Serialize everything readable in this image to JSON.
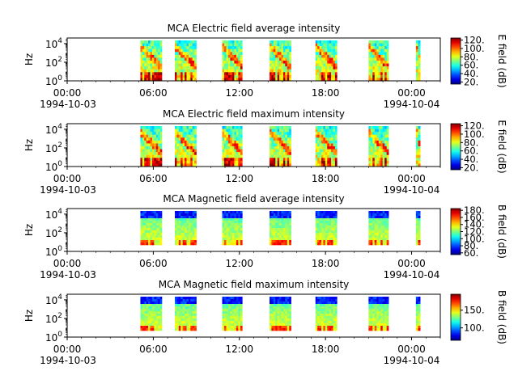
{
  "chart_data": [
    {
      "type": "heatmap",
      "title": "MCA  Electric field average intensity",
      "ylabel": "Hz",
      "y_scale": "log",
      "y_tick_labels": [
        {
          "base": "10",
          "exp": "0"
        },
        {
          "base": "10",
          "exp": "2"
        },
        {
          "base": "10",
          "exp": "4"
        }
      ],
      "x_tick_labels": [
        "00:00",
        "06:00",
        "12:00",
        "18:00",
        "00:00"
      ],
      "x_date_labels": [
        "1994-10-03",
        "1994-10-04"
      ],
      "colorbar": {
        "label": "E field (dB)",
        "min": 15,
        "max": 125,
        "ticks": [
          "20.",
          "40.",
          "60.",
          "80.",
          "100.",
          "120."
        ],
        "tick_values": [
          20,
          40,
          60,
          80,
          100,
          120
        ]
      },
      "data_segments_utc_hours": [
        [
          5.1,
          6.6
        ],
        [
          7.5,
          9.0
        ],
        [
          10.8,
          12.2
        ],
        [
          14.1,
          15.6
        ],
        [
          17.3,
          18.8
        ],
        [
          21.0,
          22.4
        ],
        [
          24.3,
          24.6
        ]
      ]
    },
    {
      "type": "heatmap",
      "title": "MCA  Electric field maximum intensity",
      "ylabel": "Hz",
      "y_scale": "log",
      "y_tick_labels": [
        {
          "base": "10",
          "exp": "0"
        },
        {
          "base": "10",
          "exp": "2"
        },
        {
          "base": "10",
          "exp": "4"
        }
      ],
      "x_tick_labels": [
        "00:00",
        "06:00",
        "12:00",
        "18:00",
        "00:00"
      ],
      "x_date_labels": [
        "1994-10-03",
        "1994-10-04"
      ],
      "colorbar": {
        "label": "E field (dB)",
        "min": 15,
        "max": 125,
        "ticks": [
          "20.",
          "40.",
          "60.",
          "80.",
          "100.",
          "120."
        ],
        "tick_values": [
          20,
          40,
          60,
          80,
          100,
          120
        ]
      },
      "data_segments_utc_hours": [
        [
          5.1,
          6.6
        ],
        [
          7.5,
          9.0
        ],
        [
          10.8,
          12.2
        ],
        [
          14.1,
          15.6
        ],
        [
          17.3,
          18.8
        ],
        [
          21.0,
          22.4
        ],
        [
          24.3,
          24.6
        ]
      ]
    },
    {
      "type": "heatmap",
      "title": "MCA  Magnetic field average intensity",
      "ylabel": "Hz",
      "y_scale": "log",
      "y_tick_labels": [
        {
          "base": "10",
          "exp": "0"
        },
        {
          "base": "10",
          "exp": "2"
        },
        {
          "base": "10",
          "exp": "4"
        }
      ],
      "x_tick_labels": [
        "00:00",
        "06:00",
        "12:00",
        "18:00",
        "00:00"
      ],
      "x_date_labels": [
        "1994-10-03",
        "1994-10-04"
      ],
      "colorbar": {
        "label": "B field (dB)",
        "min": 55,
        "max": 185,
        "ticks": [
          "60.",
          "80.",
          "100.",
          "120.",
          "140.",
          "160.",
          "180."
        ],
        "tick_values": [
          60,
          80,
          100,
          120,
          140,
          160,
          180
        ]
      },
      "data_segments_utc_hours": [
        [
          5.1,
          6.6
        ],
        [
          7.5,
          9.0
        ],
        [
          10.8,
          12.2
        ],
        [
          14.1,
          15.6
        ],
        [
          17.3,
          18.8
        ],
        [
          21.0,
          22.4
        ],
        [
          24.3,
          24.6
        ]
      ]
    },
    {
      "type": "heatmap",
      "title": "MCA  Magnetic field maximum intensity",
      "ylabel": "Hz",
      "y_scale": "log",
      "y_tick_labels": [
        {
          "base": "10",
          "exp": "0"
        },
        {
          "base": "10",
          "exp": "2"
        },
        {
          "base": "10",
          "exp": "4"
        }
      ],
      "x_tick_labels": [
        "00:00",
        "06:00",
        "12:00",
        "18:00",
        "00:00"
      ],
      "x_date_labels": [
        "1994-10-03",
        "1994-10-04"
      ],
      "colorbar": {
        "label": "B field (dB)",
        "min": 65,
        "max": 195,
        "ticks": [
          "100.",
          "150."
        ],
        "tick_values": [
          100,
          150
        ]
      },
      "data_segments_utc_hours": [
        [
          5.1,
          6.6
        ],
        [
          7.5,
          9.0
        ],
        [
          10.8,
          12.2
        ],
        [
          14.1,
          15.6
        ],
        [
          17.3,
          18.8
        ],
        [
          21.0,
          22.4
        ],
        [
          24.3,
          24.6
        ]
      ]
    }
  ]
}
